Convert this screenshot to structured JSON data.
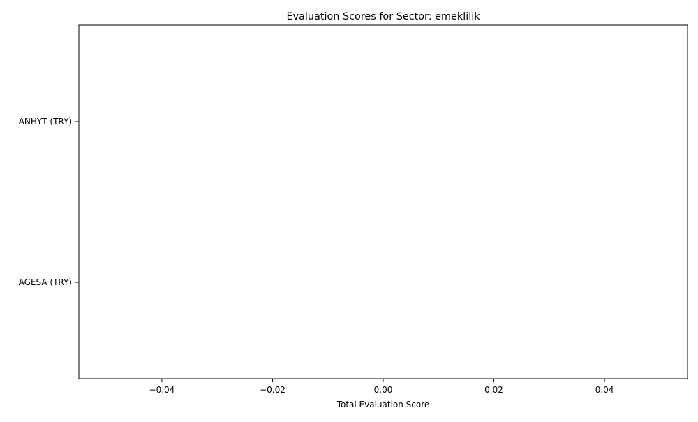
{
  "chart_data": {
    "type": "bar",
    "orientation": "horizontal",
    "title": "Evaluation Scores for Sector: emeklilik",
    "xlabel": "Total Evaluation Score",
    "ylabel": "",
    "categories": [
      "AGESA (TRY)",
      "ANHYT (TRY)"
    ],
    "values": [
      0,
      0
    ],
    "xlim": [
      -0.055,
      0.055
    ],
    "xticks": [
      -0.04,
      -0.02,
      0.0,
      0.02,
      0.04
    ],
    "xtick_labels": [
      "−0.04",
      "−0.02",
      "0.00",
      "0.02",
      "0.04"
    ],
    "grid": false,
    "legend": "none",
    "bar_color": "#1f77b4"
  }
}
